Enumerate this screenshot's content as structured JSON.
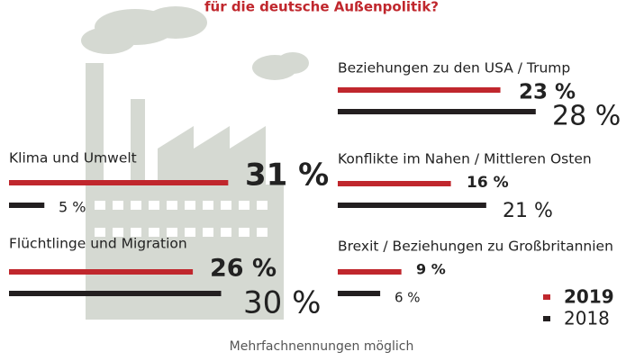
{
  "chart_data": {
    "type": "bar",
    "orientation": "horizontal",
    "title": "für die deutsche Außenpolitik?",
    "note": "Mehrfachnennungen möglich",
    "categories": [
      "Klima und Umwelt",
      "Flüchtlinge und Migration",
      "Beziehungen zu den USA / Trump",
      "Konflikte im Nahen / Mittleren Osten",
      "Brexit / Beziehungen zu Großbritannien"
    ],
    "series": [
      {
        "name": "2019",
        "color": "#c0272d",
        "values": [
          31,
          26,
          23,
          16,
          9
        ],
        "value_labels": [
          "31 %",
          "26 %",
          "23 %",
          "16 %",
          "9 %"
        ]
      },
      {
        "name": "2018",
        "color": "#231f20",
        "values": [
          5,
          30,
          28,
          21,
          6
        ],
        "value_labels": [
          "5 %",
          "30 %",
          "28 %",
          "21 %",
          "6 %"
        ]
      }
    ]
  }
}
